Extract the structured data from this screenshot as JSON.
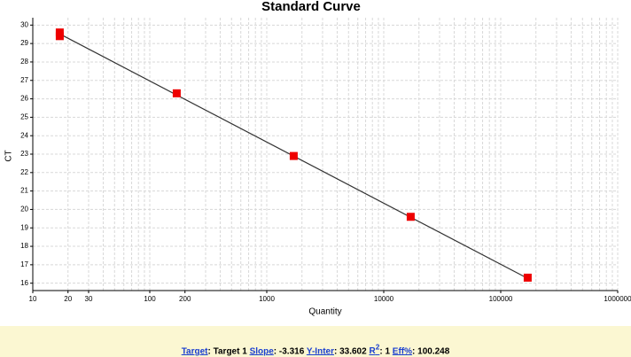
{
  "chart_data": {
    "type": "scatter",
    "title": "Standard Curve",
    "x_label": "Quantity",
    "y_label": "CT",
    "x": [
      17,
      17,
      170,
      1700,
      17000,
      170000
    ],
    "y": [
      29.4,
      29.6,
      26.3,
      22.9,
      19.6,
      16.3
    ],
    "color": "#ee0000",
    "fit_line": {
      "x": [
        17,
        170000
      ],
      "y": [
        29.52,
        16.26
      ],
      "color": "#333333"
    },
    "log_x": true,
    "grid": true,
    "xlim": [
      10,
      1000000
    ],
    "xticks": [
      10,
      20,
      30,
      100,
      200,
      1000,
      10000,
      100000,
      1000000
    ],
    "xminor": [
      40,
      50,
      60,
      70,
      80,
      90,
      300,
      400,
      500,
      600,
      700,
      800,
      900,
      2000,
      3000,
      4000,
      5000,
      6000,
      7000,
      8000,
      9000,
      20000,
      30000,
      40000,
      50000,
      60000,
      70000,
      80000,
      90000,
      200000,
      300000,
      400000,
      500000,
      600000,
      700000,
      800000,
      900000
    ],
    "ylim": [
      15.6,
      30.4
    ],
    "yticks": [
      16,
      17,
      18,
      19,
      20,
      21,
      22,
      23,
      24,
      25,
      26,
      27,
      28,
      29,
      30
    ],
    "stats": [
      {
        "label": "Target",
        "value": ": Target 1 "
      },
      {
        "label": "Slope",
        "value": ": -3.316 "
      },
      {
        "label": "Y-Inter",
        "value": ": 33.602 "
      },
      {
        "label": "R",
        "sup": "2",
        "value": ": 1 "
      },
      {
        "label": "Eff%",
        "value": ": 100.248"
      }
    ]
  }
}
